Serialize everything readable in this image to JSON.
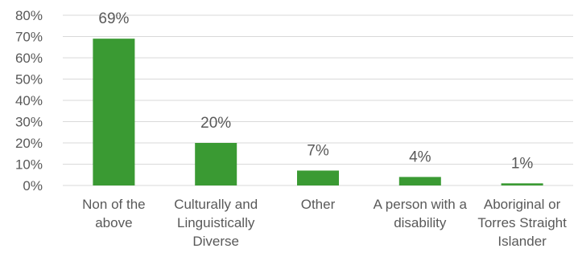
{
  "chart_data": {
    "type": "bar",
    "categories": [
      "Non of the above",
      "Culturally and Linguistically Diverse",
      "Other",
      "A person with a disability",
      "Aboriginal or Torres Straight Islander"
    ],
    "values": [
      69,
      20,
      7,
      4,
      1
    ],
    "value_labels": [
      "69%",
      "20%",
      "7%",
      "4%",
      "1%"
    ],
    "y_ticks": [
      "0%",
      "10%",
      "20%",
      "30%",
      "40%",
      "50%",
      "60%",
      "70%",
      "80%"
    ],
    "y_tick_values": [
      0,
      10,
      20,
      30,
      40,
      50,
      60,
      70,
      80
    ],
    "ylim": [
      0,
      80
    ],
    "title": "",
    "xlabel": "",
    "ylabel": "",
    "grid": true,
    "legend": "none",
    "colors": {
      "bar": "#3a9a33",
      "grid": "#d9d9d9",
      "text": "#595959"
    }
  }
}
